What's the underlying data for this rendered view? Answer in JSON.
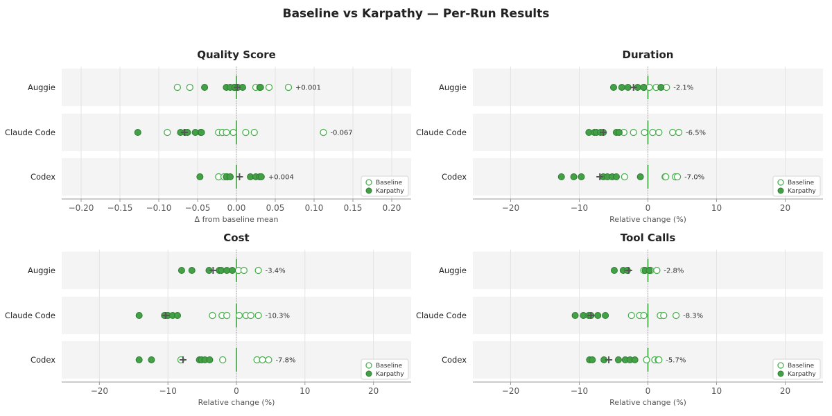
{
  "title": "Baseline vs Karpathy — Per-Run Results",
  "colors": {
    "baseline_edge": "#4caf50",
    "karpathy_fill": "#43a047",
    "karpathy_edge": "#2e7d32",
    "mean_marker": "#555555",
    "zero_line": "#3aa03a",
    "band": "#f4f4f4",
    "grid": "#e3e3e3"
  },
  "legend": [
    "Baseline",
    "Karpathy"
  ],
  "chart_data": [
    {
      "type": "scatter",
      "title": "Quality Score",
      "xlabel": "Δ from baseline mean",
      "xlim": [
        -0.225,
        0.225
      ],
      "xticks": [
        -0.2,
        -0.15,
        -0.1,
        -0.05,
        0.0,
        0.05,
        0.1,
        0.15,
        0.2
      ],
      "xtick_labels": [
        "−0.20",
        "−0.15",
        "−0.10",
        "−0.05",
        "0.00",
        "0.05",
        "0.10",
        "0.15",
        "0.20"
      ],
      "legend_position": "bottom-right",
      "rows": [
        {
          "category": "Auggie",
          "annotation": "+0.001",
          "mean": 0.001,
          "baseline": [
            -0.076,
            -0.06,
            -0.003,
            0.025,
            0.03,
            0.042,
            0.067
          ],
          "karpathy": [
            -0.041,
            -0.013,
            -0.008,
            -0.002,
            0.002,
            0.031,
            0.008
          ]
        },
        {
          "category": "Claude Code",
          "annotation": "-0.067",
          "mean": -0.067,
          "baseline": [
            -0.089,
            -0.023,
            -0.018,
            -0.013,
            -0.004,
            0.012,
            0.023,
            0.112
          ],
          "karpathy": [
            -0.127,
            -0.072,
            -0.066,
            -0.063,
            -0.053,
            -0.046,
            -0.045
          ]
        },
        {
          "category": "Codex",
          "annotation": "+0.004",
          "mean": 0.004,
          "baseline": [
            -0.023,
            -0.016,
            -0.012
          ],
          "karpathy": [
            -0.047,
            -0.013,
            -0.008,
            0.018,
            0.025,
            0.03,
            0.032
          ]
        }
      ]
    },
    {
      "type": "scatter",
      "title": "Duration",
      "xlabel": "Relative change (%)",
      "xlim": [
        -25.5,
        25.5
      ],
      "xticks": [
        -20,
        -10,
        0,
        10,
        20
      ],
      "xtick_labels": [
        "−20",
        "−10",
        "0",
        "10",
        "20"
      ],
      "legend_position": "bottom-right",
      "rows": [
        {
          "category": "Auggie",
          "annotation": "-2.1%",
          "mean": -2.1,
          "baseline": [
            -0.6,
            0.2,
            1.2,
            2.7
          ],
          "karpathy": [
            -5.0,
            -3.8,
            -2.9,
            -1.5,
            -0.6,
            1.9
          ]
        },
        {
          "category": "Claude Code",
          "annotation": "-6.5%",
          "mean": -6.5,
          "baseline": [
            -3.5,
            -2.1,
            -0.5,
            0.7,
            1.6,
            3.6,
            4.5
          ],
          "karpathy": [
            -8.6,
            -7.8,
            -7.5,
            -6.9,
            -6.5,
            -4.6,
            -4.2
          ]
        },
        {
          "category": "Codex",
          "annotation": "-7.0%",
          "mean": -7.0,
          "baseline": [
            -3.4,
            2.5,
            2.6,
            4.0,
            4.3
          ],
          "karpathy": [
            -12.6,
            -10.8,
            -9.7,
            -6.5,
            -5.9,
            -5.2,
            -4.6,
            -1.1
          ]
        }
      ]
    },
    {
      "type": "scatter",
      "title": "Cost",
      "xlabel": "Relative change (%)",
      "xlim": [
        -25.5,
        25.5
      ],
      "xticks": [
        -20,
        -10,
        0,
        10,
        20
      ],
      "xtick_labels": [
        "−20",
        "−10",
        "0",
        "10",
        "20"
      ],
      "legend_position": "bottom-right",
      "rows": [
        {
          "category": "Auggie",
          "annotation": "-3.4%",
          "mean": -3.4,
          "baseline": [
            0.3,
            1.1,
            3.2
          ],
          "karpathy": [
            -8.0,
            -6.5,
            -4.0,
            -2.5,
            -2.2,
            -1.4,
            -0.6
          ]
        },
        {
          "category": "Claude Code",
          "annotation": "-10.3%",
          "mean": -10.3,
          "baseline": [
            -3.5,
            -2.1,
            -1.4,
            0.4,
            1.4,
            2.1,
            3.2
          ],
          "karpathy": [
            -14.2,
            -10.5,
            -10.0,
            -9.3,
            -8.6
          ]
        },
        {
          "category": "Codex",
          "annotation": "-7.8%",
          "mean": -7.8,
          "baseline": [
            -8.1,
            -2.0,
            3.0,
            3.8,
            4.7
          ],
          "karpathy": [
            -14.2,
            -12.4,
            -5.4,
            -5.1,
            -4.6,
            -3.9
          ]
        }
      ]
    },
    {
      "type": "scatter",
      "title": "Tool Calls",
      "xlabel": "Relative change (%)",
      "xlim": [
        -25.5,
        25.5
      ],
      "xticks": [
        -20,
        -10,
        0,
        10,
        20
      ],
      "xtick_labels": [
        "−20",
        "−10",
        "0",
        "10",
        "20"
      ],
      "legend_position": "bottom-right",
      "rows": [
        {
          "category": "Auggie",
          "annotation": "-2.8%",
          "mean": -2.8,
          "baseline": [
            -0.6,
            0.4,
            1.3
          ],
          "karpathy": [
            -4.9,
            -3.6,
            -3.0,
            -0.4,
            0.2
          ]
        },
        {
          "category": "Claude Code",
          "annotation": "-8.3%",
          "mean": -8.3,
          "baseline": [
            -2.4,
            -1.2,
            -0.6,
            1.8,
            2.3,
            4.1
          ],
          "karpathy": [
            -10.6,
            -9.4,
            -8.6,
            -8.3,
            -7.3,
            -6.2
          ]
        },
        {
          "category": "Codex",
          "annotation": "-5.7%",
          "mean": -5.7,
          "baseline": [
            -0.2,
            1.0,
            1.5,
            1.6
          ],
          "karpathy": [
            -8.5,
            -8.1,
            -6.4,
            -4.3,
            -3.3,
            -2.6,
            -1.9
          ]
        }
      ]
    }
  ]
}
